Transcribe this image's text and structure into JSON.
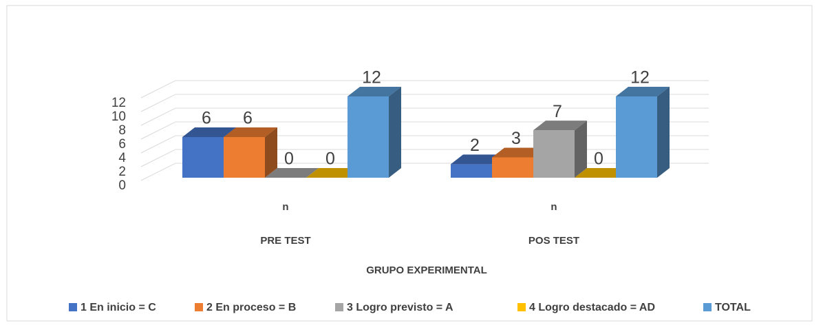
{
  "chart_data": {
    "type": "bar3d",
    "categories": [
      "n",
      "n"
    ],
    "groups": [
      "PRE TEST",
      "POS TEST"
    ],
    "x_label": "GRUPO EXPERIMENTAL",
    "series": [
      {
        "name": "1 En inicio = C",
        "color": "#4472c4",
        "values": [
          6,
          2
        ]
      },
      {
        "name": "2 En proceso = B",
        "color": "#ed7d31",
        "values": [
          6,
          3
        ]
      },
      {
        "name": "3 Logro previsto = A",
        "color": "#a5a5a5",
        "values": [
          0,
          7
        ]
      },
      {
        "name": "4 Logro destacado = AD",
        "color": "#ffc000",
        "values": [
          0,
          0
        ]
      },
      {
        "name": "TOTAL",
        "color": "#5b9bd5",
        "values": [
          12,
          12
        ]
      }
    ],
    "ylim": [
      0,
      12
    ],
    "yticks": [
      0,
      2,
      4,
      6,
      8,
      10,
      12
    ],
    "grid": true,
    "legend": "bottom"
  }
}
